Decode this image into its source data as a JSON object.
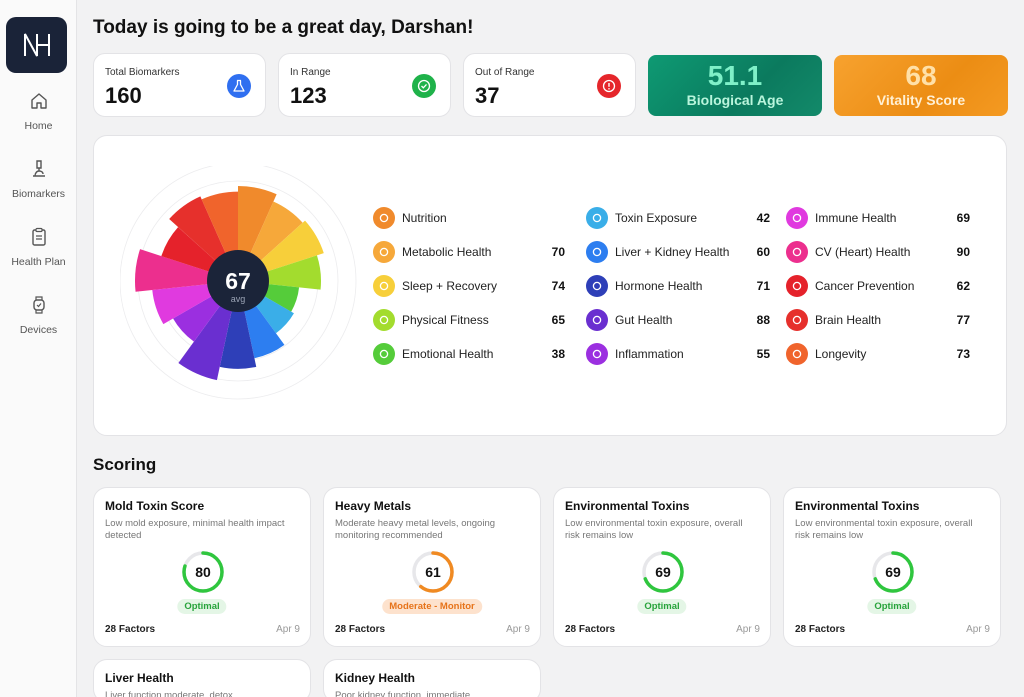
{
  "sidebar": {
    "logo_text": "NH",
    "items": [
      {
        "label": "Home",
        "icon": "home-icon"
      },
      {
        "label": "Biomarkers",
        "icon": "microscope-icon"
      },
      {
        "label": "Health Plan",
        "icon": "clipboard-icon"
      },
      {
        "label": "Devices",
        "icon": "watch-icon"
      }
    ]
  },
  "header": {
    "greeting": "Today is going to be a great day, Darshan!"
  },
  "stats": [
    {
      "label": "Total Biomarkers",
      "value": "160",
      "icon": "flask-icon",
      "color": "#2f6ff0"
    },
    {
      "label": "In Range",
      "value": "123",
      "icon": "check-circle-icon",
      "color": "#1fb24a"
    },
    {
      "label": "Out of Range",
      "value": "37",
      "icon": "alert-icon",
      "color": "#e5262b"
    }
  ],
  "biological_age": {
    "value": "51.1",
    "label": "Biological Age"
  },
  "vitality_score": {
    "value": "68",
    "label": "Vitality Score"
  },
  "radial": {
    "center_value": "67",
    "center_label": "avg"
  },
  "categories": [
    {
      "name": "Nutrition",
      "value": "",
      "color": "#f08a2c",
      "icon": "cube-icon"
    },
    {
      "name": "Metabolic Health",
      "value": "70",
      "color": "#f6a83a",
      "icon": "dna-icon"
    },
    {
      "name": "Sleep + Recovery",
      "value": "74",
      "color": "#f7cf3a",
      "icon": "moon-icon"
    },
    {
      "name": "Physical Fitness",
      "value": "65",
      "color": "#a3dc2e",
      "icon": "runner-icon"
    },
    {
      "name": "Emotional Health",
      "value": "38",
      "color": "#55cc3a",
      "icon": "smile-icon"
    },
    {
      "name": "Toxin Exposure",
      "value": "42",
      "color": "#3aaee8",
      "icon": "molecule-icon"
    },
    {
      "name": "Liver + Kidney Health",
      "value": "60",
      "color": "#2d7ef0",
      "icon": "filter-icon"
    },
    {
      "name": "Hormone Health",
      "value": "71",
      "color": "#2e3fb8",
      "icon": "heart-pulse-icon"
    },
    {
      "name": "Gut Health",
      "value": "88",
      "color": "#6a2fd0",
      "icon": "stomach-icon"
    },
    {
      "name": "Inflammation",
      "value": "55",
      "color": "#9b2fe0",
      "icon": "flame-icon"
    },
    {
      "name": "Immune Health",
      "value": "69",
      "color": "#e03adf",
      "icon": "cells-icon"
    },
    {
      "name": "CV (Heart) Health",
      "value": "90",
      "color": "#ec2f8e",
      "icon": "heart-icon"
    },
    {
      "name": "Cancer Prevention",
      "value": "62",
      "color": "#e5222b",
      "icon": "ribbon-icon"
    },
    {
      "name": "Brain Health",
      "value": "77",
      "color": "#e6302c",
      "icon": "brain-icon"
    },
    {
      "name": "Longevity",
      "value": "73",
      "color": "#f0642c",
      "icon": "hourglass-icon"
    }
  ],
  "scoring": {
    "title": "Scoring",
    "cards": [
      {
        "title": "Mold Toxin Score",
        "desc": "Low mold exposure, minimal health impact detected",
        "value": 80,
        "status": "Optimal",
        "status_type": "optimal",
        "factors": "28 Factors",
        "date": "Apr 9",
        "ring_color": "#2fc63e"
      },
      {
        "title": "Heavy Metals",
        "desc": "Moderate heavy metal levels, ongoing monitoring recommended",
        "value": 61,
        "status": "Moderate - Monitor",
        "status_type": "moderate",
        "factors": "28 Factors",
        "date": "Apr 9",
        "ring_color": "#f08a22"
      },
      {
        "title": "Environmental Toxins",
        "desc": "Low environmental toxin exposure, overall risk remains low",
        "value": 69,
        "status": "Optimal",
        "status_type": "optimal",
        "factors": "28 Factors",
        "date": "Apr 9",
        "ring_color": "#2fc63e"
      },
      {
        "title": "Environmental Toxins",
        "desc": "Low environmental toxin exposure, overall risk remains low",
        "value": 69,
        "status": "Optimal",
        "status_type": "optimal",
        "factors": "28 Factors",
        "date": "Apr 9",
        "ring_color": "#2fc63e"
      },
      {
        "title": "Liver Health",
        "desc": "Liver function moderate, detox",
        "value": null,
        "status": "",
        "status_type": "",
        "factors": "",
        "date": "",
        "ring_color": "#2fc63e"
      },
      {
        "title": "Kidney Health",
        "desc": "Poor kidney function, immediate",
        "value": null,
        "status": "",
        "status_type": "",
        "factors": "",
        "date": "",
        "ring_color": "#2fc63e"
      }
    ]
  }
}
